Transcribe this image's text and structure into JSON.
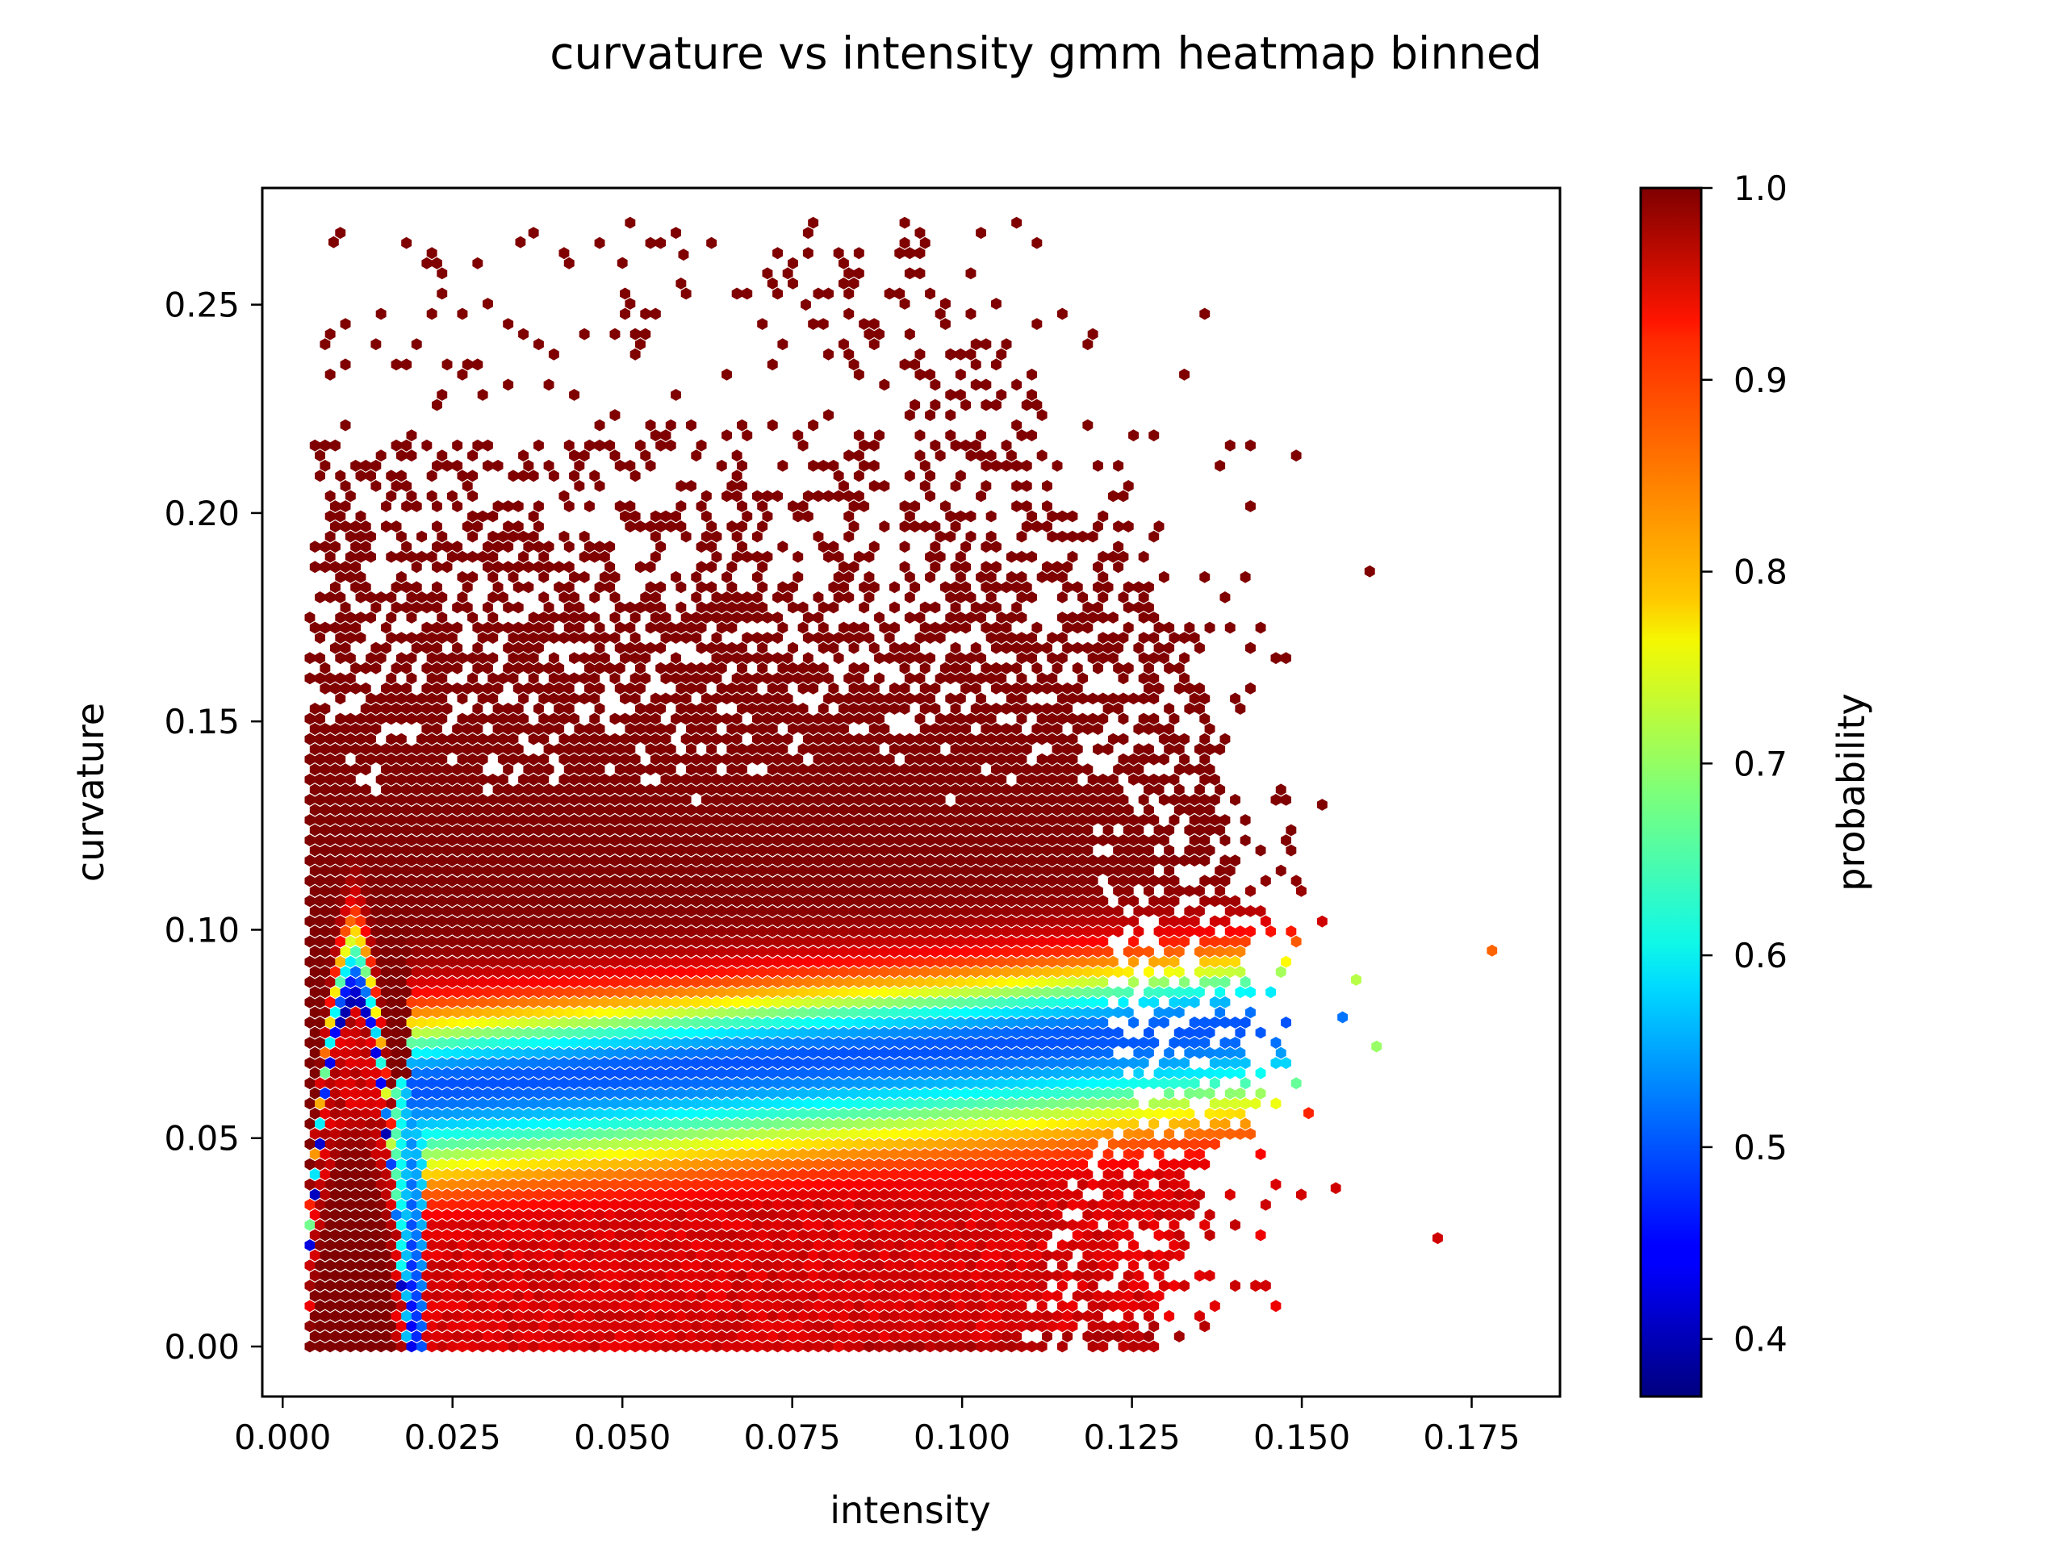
{
  "chart_data": {
    "type": "heatmap",
    "subtype": "hexbin",
    "title": "curvature vs intensity gmm heatmap binned",
    "xlabel": "intensity",
    "ylabel": "curvature",
    "xlim": [
      -0.003,
      0.188
    ],
    "ylim": [
      -0.012,
      0.278
    ],
    "xticks": [
      "0.000",
      "0.025",
      "0.050",
      "0.075",
      "0.100",
      "0.125",
      "0.150",
      "0.175"
    ],
    "xtick_values": [
      0.0,
      0.025,
      0.05,
      0.075,
      0.1,
      0.125,
      0.15,
      0.175
    ],
    "yticks": [
      "0.00",
      "0.05",
      "0.10",
      "0.15",
      "0.20",
      "0.25"
    ],
    "ytick_values": [
      0.0,
      0.05,
      0.1,
      0.15,
      0.2,
      0.25
    ],
    "colorbar": {
      "label": "probability",
      "colormap": "jet",
      "range": [
        0.37,
        1.0
      ],
      "ticks": [
        "0.4",
        "0.5",
        "0.6",
        "0.7",
        "0.8",
        "0.9",
        "1.0"
      ],
      "tick_values": [
        0.4,
        0.5,
        0.6,
        0.7,
        0.8,
        0.9,
        1.0
      ]
    },
    "grid": false,
    "structure": {
      "occupied_region": {
        "x": [
          0.004,
          0.16
        ],
        "y": [
          0.0,
          0.265
        ]
      },
      "low_probability_ridge": {
        "x_from": 0.018,
        "x_to": 0.16,
        "y_start": 0.062,
        "y_end": 0.079,
        "min_probability": 0.5
      },
      "left_arch": {
        "x": [
          0.004,
          0.019
        ],
        "peak_y": 0.083,
        "min_probability": 0.38
      },
      "high_probability_region_value": 1.0
    },
    "outliers": [
      {
        "x": 0.178,
        "y": 0.095,
        "p": 0.86
      },
      {
        "x": 0.17,
        "y": 0.026,
        "p": 0.95
      },
      {
        "x": 0.16,
        "y": 0.186,
        "p": 1.0
      },
      {
        "x": 0.161,
        "y": 0.072,
        "p": 0.7
      },
      {
        "x": 0.158,
        "y": 0.088,
        "p": 0.72
      },
      {
        "x": 0.156,
        "y": 0.079,
        "p": 0.52
      },
      {
        "x": 0.153,
        "y": 0.102,
        "p": 0.95
      },
      {
        "x": 0.153,
        "y": 0.13,
        "p": 1.0
      },
      {
        "x": 0.155,
        "y": 0.038,
        "p": 0.95
      },
      {
        "x": 0.151,
        "y": 0.056,
        "p": 0.9
      },
      {
        "x": 0.0075,
        "y": 0.265,
        "p": 1.0
      },
      {
        "x": 0.035,
        "y": 0.265,
        "p": 1.0
      },
      {
        "x": 0.059,
        "y": 0.262,
        "p": 1.0
      },
      {
        "x": 0.05,
        "y": 0.26,
        "p": 1.0
      },
      {
        "x": 0.077,
        "y": 0.25,
        "p": 1.0
      }
    ]
  }
}
